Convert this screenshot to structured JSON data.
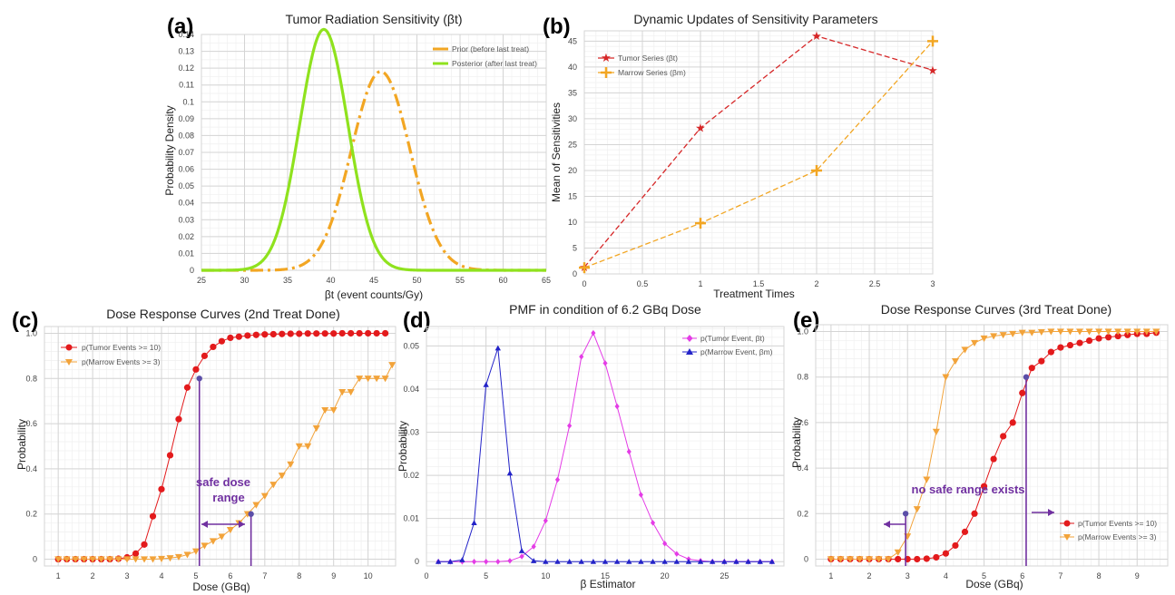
{
  "chart_data": [
    {
      "panel_label": "(a)",
      "type": "line",
      "title": "Tumor Radiation Sensitivity (βt)",
      "xlabel": "βt (event counts/Gy)",
      "ylabel": "Probability Density",
      "xlim": [
        25,
        65
      ],
      "ylim": [
        0,
        0.14
      ],
      "xticks": [
        25,
        30,
        35,
        40,
        45,
        50,
        55,
        60,
        65
      ],
      "yticks": [
        0,
        0.01,
        0.02,
        0.03,
        0.04,
        0.05,
        0.06,
        0.07,
        0.08,
        0.09,
        0.1,
        0.11,
        0.12,
        0.13,
        0.14
      ],
      "grid": true,
      "legend_position": "top-right",
      "series": [
        {
          "name": "Prior (before last treat)",
          "color": "#f2a623",
          "dash": "dashdot",
          "distribution": "normal",
          "mean": 45.8,
          "sd": 3.4,
          "peak": 0.118
        },
        {
          "name": "Posterior (after last treat)",
          "color": "#8fe21e",
          "dash": "solid",
          "distribution": "normal",
          "mean": 39.2,
          "sd": 2.8,
          "peak": 0.143
        }
      ]
    },
    {
      "panel_label": "(b)",
      "type": "line",
      "title": "Dynamic Updates of Sensitivity Parameters",
      "xlabel": "Treatment Times",
      "ylabel": "Mean of Sensitivities",
      "xlim": [
        0,
        3
      ],
      "ylim": [
        0,
        47
      ],
      "xticks": [
        0,
        0.5,
        1,
        1.5,
        2,
        2.5,
        3
      ],
      "yticks": [
        0,
        5,
        10,
        15,
        20,
        25,
        30,
        35,
        40,
        45
      ],
      "grid": true,
      "legend_position": "top-left",
      "series": [
        {
          "name": "Tumor Series (βt)",
          "color": "#d62728",
          "marker": "star",
          "x": [
            0,
            1,
            2,
            3
          ],
          "y": [
            1.3,
            28.2,
            46.0,
            39.4
          ]
        },
        {
          "name": "Marrow Series (βm)",
          "color": "#f2a623",
          "marker": "plus",
          "x": [
            0,
            1,
            2,
            3
          ],
          "y": [
            1.2,
            9.8,
            20.0,
            45.0
          ]
        }
      ]
    },
    {
      "panel_label": "(c)",
      "type": "line",
      "title": "Dose Response Curves (2nd Treat Done)",
      "xlabel": "Dose (GBq)",
      "ylabel": "Probability",
      "xlim": [
        0.6,
        10.8
      ],
      "ylim": [
        -0.03,
        1.03
      ],
      "xticks": [
        1,
        2,
        3,
        4,
        5,
        6,
        7,
        8,
        9,
        10
      ],
      "yticks": [
        0,
        0.2,
        0.4,
        0.6,
        0.8,
        1.0
      ],
      "grid": true,
      "legend_position": "top-left",
      "series": [
        {
          "name": "p(Tumor Events >= 10)",
          "color": "#e31a1c",
          "marker": "circle",
          "x": [
            1.0,
            1.25,
            1.5,
            1.75,
            2.0,
            2.25,
            2.5,
            2.75,
            3.0,
            3.25,
            3.5,
            3.75,
            4.0,
            4.25,
            4.5,
            4.75,
            5.0,
            5.25,
            5.5,
            5.75,
            6.0,
            6.25,
            6.5,
            6.75,
            7.0,
            7.25,
            7.5,
            7.75,
            8.0,
            8.25,
            8.5,
            8.75,
            9.0,
            9.25,
            9.5,
            9.75,
            10.0,
            10.25,
            10.5
          ],
          "y": [
            0,
            0,
            0,
            0,
            0,
            0,
            0,
            0.002,
            0.008,
            0.025,
            0.065,
            0.19,
            0.31,
            0.46,
            0.62,
            0.76,
            0.84,
            0.9,
            0.94,
            0.965,
            0.98,
            0.985,
            0.99,
            0.993,
            0.995,
            0.996,
            0.997,
            0.998,
            0.998,
            0.999,
            0.999,
            0.999,
            0.999,
            1,
            1,
            1,
            1,
            1,
            1
          ]
        },
        {
          "name": "p(Marrow Events >= 3)",
          "color": "#f2a33a",
          "marker": "triangle-down",
          "x": [
            1.0,
            1.25,
            1.5,
            1.75,
            2.0,
            2.25,
            2.5,
            2.75,
            3.0,
            3.25,
            3.5,
            3.75,
            4.0,
            4.25,
            4.5,
            4.75,
            5.0,
            5.25,
            5.5,
            5.75,
            6.0,
            6.25,
            6.5,
            6.75,
            7.0,
            7.25,
            7.5,
            7.75,
            8.0,
            8.25,
            8.5,
            8.75,
            9.0,
            9.25,
            9.5,
            9.75,
            10.0,
            10.25,
            10.5,
            10.7
          ],
          "y": [
            0,
            0,
            0,
            0,
            0,
            0,
            0,
            0,
            0,
            0,
            0,
            0,
            0.002,
            0.005,
            0.01,
            0.02,
            0.035,
            0.06,
            0.08,
            0.1,
            0.13,
            0.16,
            0.2,
            0.24,
            0.28,
            0.33,
            0.37,
            0.42,
            0.5,
            0.5,
            0.58,
            0.66,
            0.66,
            0.74,
            0.74,
            0.8,
            0.8,
            0.8,
            0.8,
            0.86
          ]
        }
      ],
      "markers": [
        {
          "x": 5.1,
          "y": 0.8
        },
        {
          "x": 6.6,
          "y": 0.2
        }
      ],
      "annotation": "safe dose range"
    },
    {
      "panel_label": "(d)",
      "type": "line",
      "title": "PMF in condition of 6.2 GBq Dose",
      "xlabel": "β Estimator",
      "ylabel": "Probability",
      "xlim": [
        0,
        30
      ],
      "ylim": [
        -0.001,
        0.0545
      ],
      "xticks": [
        0,
        5,
        10,
        15,
        20,
        25
      ],
      "yticks": [
        0,
        0.01,
        0.02,
        0.03,
        0.04,
        0.05
      ],
      "grid": true,
      "legend_position": "top-right",
      "series": [
        {
          "name": "p(Tumor Event, βt)",
          "color": "#e43ce6",
          "marker": "diamond",
          "x": [
            1,
            2,
            3,
            4,
            5,
            6,
            7,
            8,
            9,
            10,
            11,
            12,
            13,
            14,
            15,
            16,
            17,
            18,
            19,
            20,
            21,
            22,
            23,
            24,
            25,
            26,
            27,
            28,
            29
          ],
          "y": [
            0,
            0,
            0,
            0,
            0,
            0,
            0.0002,
            0.0012,
            0.0035,
            0.0095,
            0.019,
            0.0315,
            0.0475,
            0.053,
            0.046,
            0.036,
            0.0255,
            0.0155,
            0.009,
            0.0042,
            0.0018,
            0.0006,
            0.0002,
            0,
            0,
            0,
            0,
            0,
            0
          ]
        },
        {
          "name": "p(Marrow Event, βm)",
          "color": "#2323c8",
          "marker": "triangle-up",
          "x": [
            1,
            2,
            3,
            4,
            5,
            6,
            7,
            8,
            9,
            10,
            11,
            12,
            13,
            14,
            15,
            16,
            17,
            18,
            19,
            20,
            21,
            22,
            23,
            24,
            25,
            26,
            27,
            28,
            29
          ],
          "y": [
            0,
            0,
            0.0004,
            0.009,
            0.041,
            0.0495,
            0.0205,
            0.0025,
            0.0002,
            0,
            0,
            0,
            0,
            0,
            0,
            0,
            0,
            0,
            0,
            0,
            0,
            0,
            0,
            0,
            0,
            0,
            0,
            0,
            0
          ]
        }
      ]
    },
    {
      "panel_label": "(e)",
      "type": "line",
      "title": "Dose Response Curves (3rd Treat Done)",
      "xlabel": "Dose (GBq)",
      "ylabel": "Probability",
      "xlim": [
        0.6,
        9.8
      ],
      "ylim": [
        -0.03,
        1.03
      ],
      "xticks": [
        1,
        2,
        3,
        4,
        5,
        6,
        7,
        8,
        9
      ],
      "yticks": [
        0,
        0.2,
        0.4,
        0.6,
        0.8,
        1.0
      ],
      "grid": true,
      "legend_position": "bottom-right",
      "series": [
        {
          "name": "p(Tumor Events >= 10)",
          "color": "#e31a1c",
          "marker": "circle",
          "x": [
            1.0,
            1.25,
            1.5,
            1.75,
            2.0,
            2.25,
            2.5,
            2.75,
            3.0,
            3.25,
            3.5,
            3.75,
            4.0,
            4.25,
            4.5,
            4.75,
            5.0,
            5.25,
            5.5,
            5.75,
            6.0,
            6.25,
            6.5,
            6.75,
            7.0,
            7.25,
            7.5,
            7.75,
            8.0,
            8.25,
            8.5,
            8.75,
            9.0,
            9.25,
            9.5
          ],
          "y": [
            0,
            0,
            0,
            0,
            0,
            0,
            0,
            0,
            0,
            0,
            0.002,
            0.008,
            0.025,
            0.06,
            0.12,
            0.2,
            0.32,
            0.44,
            0.54,
            0.6,
            0.73,
            0.84,
            0.87,
            0.91,
            0.93,
            0.94,
            0.95,
            0.96,
            0.97,
            0.975,
            0.98,
            0.985,
            0.99,
            0.99,
            0.995
          ]
        },
        {
          "name": "p(Marrow Events >= 3)",
          "color": "#f2a33a",
          "marker": "triangle-down",
          "x": [
            1.0,
            1.25,
            1.5,
            1.75,
            2.0,
            2.25,
            2.5,
            2.75,
            3.0,
            3.25,
            3.5,
            3.75,
            4.0,
            4.25,
            4.5,
            4.75,
            5.0,
            5.25,
            5.5,
            5.75,
            6.0,
            6.25,
            6.5,
            6.75,
            7.0,
            7.25,
            7.5,
            7.75,
            8.0,
            8.25,
            8.5,
            8.75,
            9.0,
            9.25,
            9.5
          ],
          "y": [
            0,
            0,
            0,
            0,
            0,
            0,
            0,
            0.03,
            0.1,
            0.22,
            0.35,
            0.56,
            0.8,
            0.87,
            0.92,
            0.95,
            0.97,
            0.98,
            0.985,
            0.99,
            0.995,
            0.995,
            0.998,
            1,
            1,
            1,
            1,
            1,
            1,
            1,
            1,
            1,
            1,
            1,
            1
          ]
        }
      ],
      "markers": [
        {
          "x": 2.95,
          "y": 0.2
        },
        {
          "x": 6.1,
          "y": 0.8
        }
      ],
      "annotation": "no safe range exists"
    }
  ]
}
